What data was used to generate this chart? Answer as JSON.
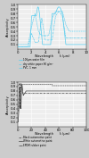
{
  "fig_width": 1.0,
  "fig_height": 1.77,
  "dpi": 100,
  "top_plot": {
    "xlabel_unit": "Wavelength      λ (μm)",
    "ylabel": "Absorptivity",
    "xlim": [
      0,
      10
    ],
    "ylim": [
      0,
      1.0
    ],
    "yticks": [
      0.1,
      0.2,
      0.3,
      0.4,
      0.5,
      0.6,
      0.7,
      0.8,
      0.9,
      1.0
    ],
    "xticks": [
      0,
      2,
      4,
      6,
      8,
      10
    ],
    "bg_color": "#eeeeee",
    "grid_color": "#ffffff",
    "cyan": "#55ccee",
    "legend": [
      {
        "label": "100μm water film",
        "linestyle": "-"
      },
      {
        "label": "dry white paper 80 g/m²",
        "linestyle": "--"
      },
      {
        "label": "PVC, 1 mm",
        "linestyle": "-."
      }
    ]
  },
  "bottom_plot": {
    "xlabel_unit": "Wavelength      λ (μm)",
    "ylabel": "Absorptivity",
    "xlim": [
      0,
      100
    ],
    "ylim": [
      0,
      1.0
    ],
    "yticks": [
      0.1,
      0.2,
      0.3,
      0.4,
      0.5,
      0.6,
      0.7,
      0.8,
      0.9,
      1.0
    ],
    "xticks": [
      0,
      20,
      40,
      60,
      80,
      100
    ],
    "bg_color": "#eeeeee",
    "grid_color": "#ffffff",
    "dark": "#444444",
    "legend": [
      {
        "label": "Black automotive paint",
        "linestyle": "--"
      },
      {
        "label": "White automotive paint",
        "linestyle": "-"
      },
      {
        "label": "EPDM rubber paint",
        "linestyle": "-."
      }
    ]
  }
}
